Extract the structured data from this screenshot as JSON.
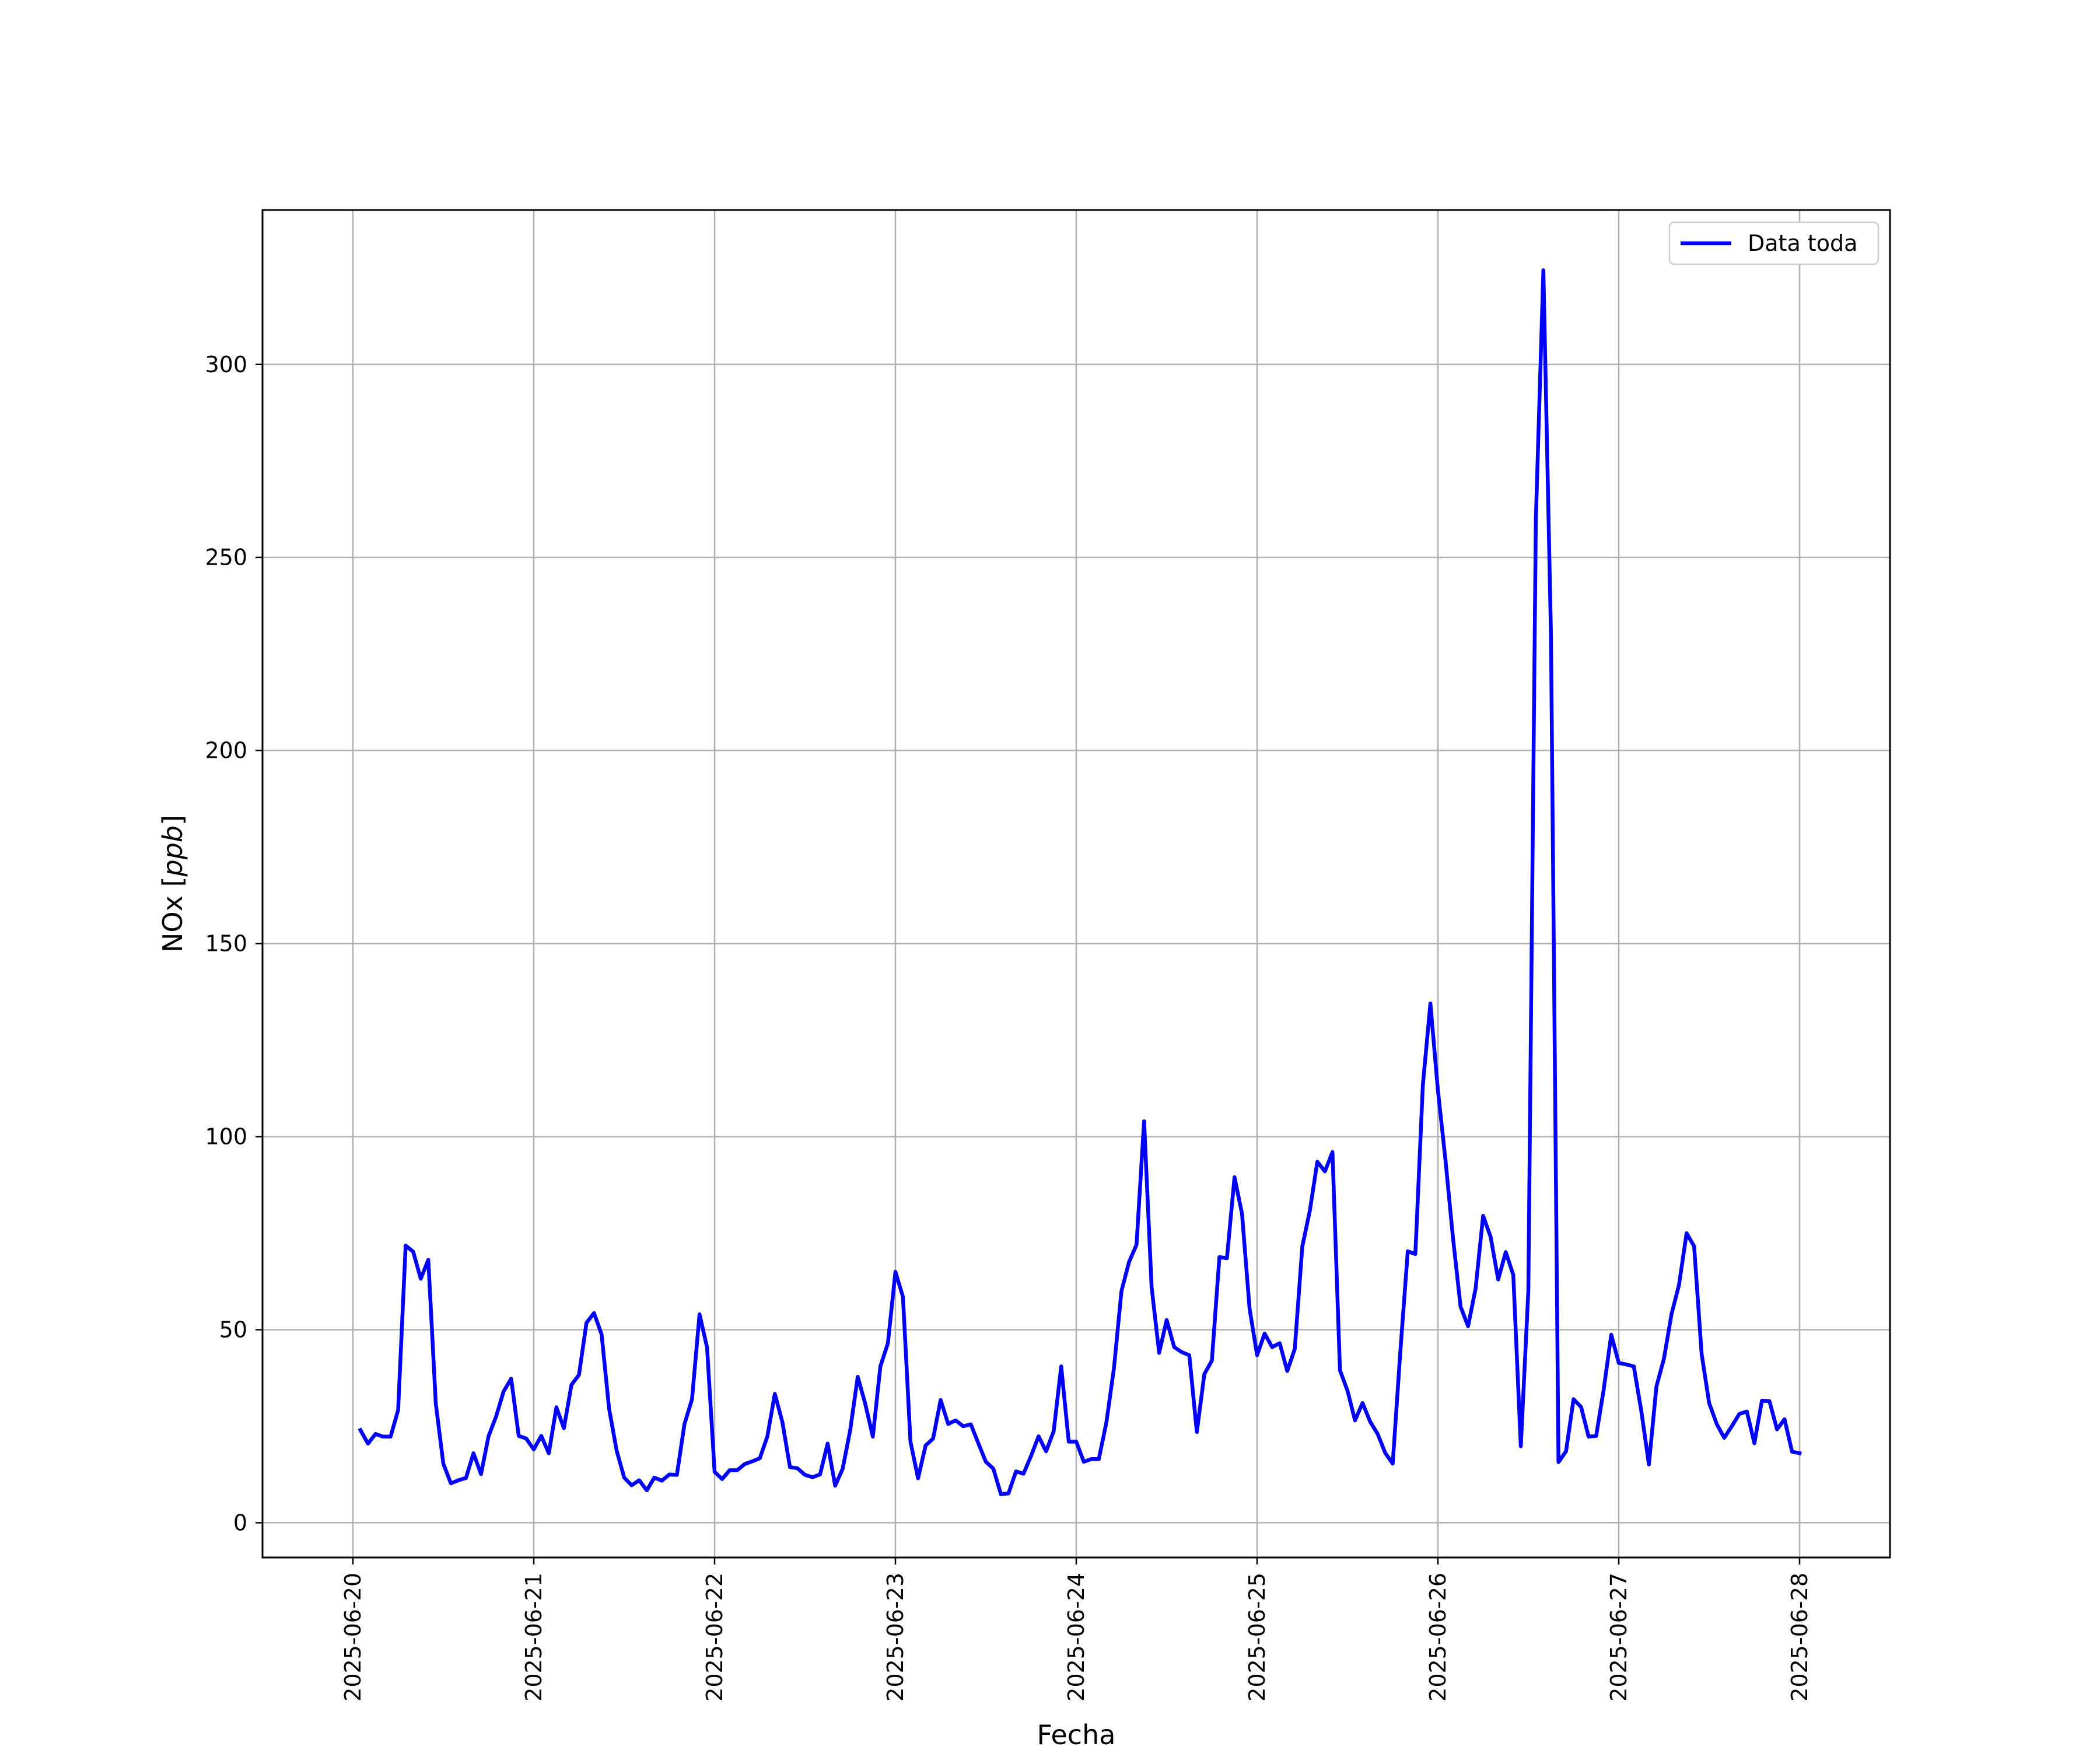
{
  "chart_data": {
    "type": "line",
    "title": "",
    "xlabel": "Fecha",
    "ylabel_main": "NOx",
    "ylabel_unit": "ppb",
    "xlim": [
      "2025-06-19T12:00",
      "2025-06-28T12:00"
    ],
    "ylim": [
      -9,
      340
    ],
    "x_ticks": [
      "2025-06-20",
      "2025-06-21",
      "2025-06-22",
      "2025-06-23",
      "2025-06-24",
      "2025-06-25",
      "2025-06-26",
      "2025-06-27",
      "2025-06-28"
    ],
    "y_ticks": [
      0,
      50,
      100,
      150,
      200,
      250,
      300
    ],
    "grid": true,
    "legend": {
      "position": "top-right",
      "entries": [
        "Data toda"
      ]
    },
    "series": [
      {
        "name": "Data toda",
        "color": "#0000ff",
        "start": "2025-06-20T01:00",
        "step_hours": 1,
        "values": [
          24,
          20.5,
          23,
          22.3,
          22.3,
          29.2,
          71.8,
          70.2,
          63.2,
          68.1,
          30.8,
          15.3,
          10.2,
          11,
          11.6,
          18,
          12.6,
          22.4,
          27.5,
          34,
          37.3,
          22.5,
          21.8,
          19,
          22.5,
          18,
          29.9,
          24.5,
          35.7,
          38.3,
          51.8,
          54.3,
          48.8,
          29.5,
          18.7,
          11.7,
          9.7,
          11,
          8.4,
          11.7,
          10.9,
          12.5,
          12.4,
          25.5,
          32,
          54,
          45.4,
          13.2,
          11.3,
          13.6,
          13.6,
          15.2,
          15.9,
          16.7,
          22.3,
          33.4,
          26,
          14.4,
          14.1,
          12.4,
          11.8,
          12.5,
          20.5,
          9.6,
          14,
          24,
          37.8,
          30.8,
          22.3,
          40.5,
          46.5,
          65,
          58.5,
          21,
          11.5,
          20,
          21.8,
          31.8,
          25.6,
          26.5,
          25,
          25.5,
          20.6,
          15.8,
          14,
          7.4,
          7.6,
          13.3,
          12.7,
          17.3,
          22.4,
          18.5,
          23.7,
          40.5,
          21,
          21,
          15.8,
          16.5,
          16.5,
          26,
          40,
          60,
          67.5,
          72,
          104,
          61,
          44,
          52.5,
          45.5,
          44.2,
          43.4,
          23.5,
          38.5,
          42,
          68.8,
          68.5,
          89.5,
          80,
          55.5,
          43.4,
          49,
          45.5,
          46.5,
          39.3,
          45,
          71.5,
          80.8,
          93.5,
          91,
          96,
          39.5,
          34.2,
          26.5,
          31,
          26.2,
          23,
          18.1,
          15.3,
          44,
          70.3,
          69.6,
          113.4,
          134.5,
          112,
          94,
          73.8,
          56,
          50.9,
          60.7,
          79.5,
          74,
          63,
          70.1,
          64.2,
          19.8,
          60,
          260,
          324.4,
          230,
          15.7,
          18.5,
          32,
          30,
          22.3,
          22.5,
          34.5,
          48.7,
          41.4,
          41,
          40.5,
          28.8,
          15.1,
          35.3,
          42.5,
          54,
          61.6,
          75,
          71.6,
          43.7,
          31,
          25.6,
          22,
          25,
          28.2,
          28.8,
          20.6,
          31.6,
          31.5,
          24.2,
          26.8,
          18.4,
          18
        ]
      }
    ]
  }
}
